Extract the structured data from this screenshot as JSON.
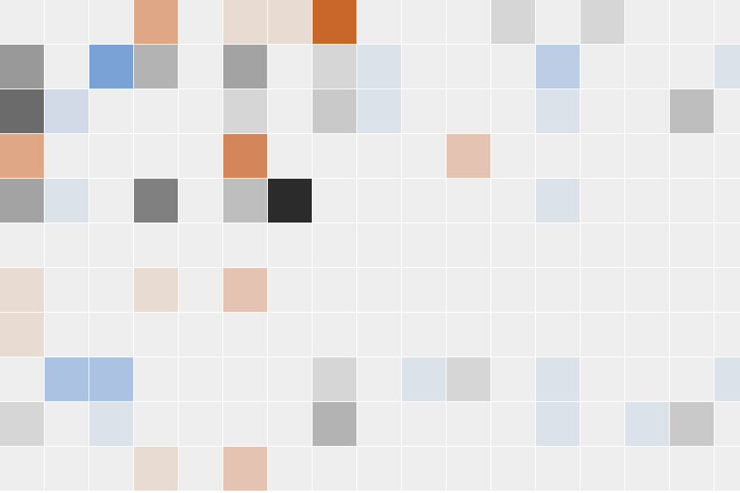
{
  "chart_data": {
    "type": "heatmap",
    "title": "",
    "xlabel": "",
    "ylabel": "",
    "grid": true,
    "legend": "none",
    "n_rows": 11,
    "n_cols": 17,
    "palette": {
      "empty": "#eeeeee",
      "gray": [
        "#d6d6d6",
        "#c9c9c9",
        "#bebebe",
        "#b3b3b3",
        "#a3a3a3",
        "#999999",
        "#808080",
        "#6b6b6b",
        "#2b2b2b"
      ],
      "orange": [
        "#e8dbd2",
        "#e4c3b2",
        "#dfa786",
        "#d4865a",
        "#c96629"
      ],
      "blue": [
        "#dbe2ea",
        "#d2dae8",
        "#bccde5",
        "#acc2e2",
        "#7aa2d6"
      ]
    },
    "cells": [
      [
        null,
        null,
        null,
        "#dfa786",
        null,
        "#e8dbd2",
        "#e8dbd2",
        "#c96629",
        null,
        null,
        null,
        "#d6d6d6",
        null,
        "#d6d6d6",
        null,
        null,
        null
      ],
      [
        "#999999",
        null,
        "#7aa2d6",
        "#b3b3b3",
        null,
        "#a3a3a3",
        null,
        "#d6d6d6",
        "#dbe2ea",
        null,
        null,
        null,
        "#bccde5",
        null,
        null,
        null,
        "#dbe2ea"
      ],
      [
        "#6b6b6b",
        "#d2dae8",
        null,
        null,
        null,
        "#d6d6d6",
        null,
        "#c9c9c9",
        "#dbe2ea",
        null,
        null,
        null,
        "#dbe2ea",
        null,
        null,
        "#bebebe",
        null
      ],
      [
        "#dfa786",
        null,
        null,
        null,
        null,
        "#d4865a",
        null,
        null,
        null,
        null,
        "#e4c3b2",
        null,
        null,
        null,
        null,
        null,
        null
      ],
      [
        "#a3a3a3",
        "#dbe2ea",
        null,
        "#808080",
        null,
        "#bebebe",
        "#2b2b2b",
        null,
        null,
        null,
        null,
        null,
        "#dbe2ea",
        null,
        null,
        null,
        null
      ],
      [
        null,
        null,
        null,
        null,
        null,
        null,
        null,
        null,
        null,
        null,
        null,
        null,
        null,
        null,
        null,
        null,
        null
      ],
      [
        "#e8dbd2",
        null,
        null,
        "#e8dbd2",
        null,
        "#e4c3b2",
        null,
        null,
        null,
        null,
        null,
        null,
        null,
        null,
        null,
        null,
        null
      ],
      [
        "#e8dbd2",
        null,
        null,
        null,
        null,
        null,
        null,
        null,
        null,
        null,
        null,
        null,
        null,
        null,
        null,
        null,
        null
      ],
      [
        null,
        "#acc2e2",
        "#acc2e2",
        null,
        null,
        null,
        null,
        "#d6d6d6",
        null,
        "#dbe2ea",
        "#d6d6d6",
        null,
        "#dbe2ea",
        null,
        null,
        null,
        "#dbe2ea"
      ],
      [
        "#d6d6d6",
        null,
        "#dbe2ea",
        null,
        null,
        null,
        null,
        "#b3b3b3",
        null,
        null,
        null,
        null,
        "#dbe2ea",
        null,
        "#dbe2ea",
        "#c9c9c9",
        null
      ],
      [
        null,
        null,
        null,
        "#e8dbd2",
        null,
        "#e4c3b2",
        null,
        null,
        null,
        null,
        null,
        null,
        null,
        null,
        null,
        null,
        null
      ]
    ]
  }
}
